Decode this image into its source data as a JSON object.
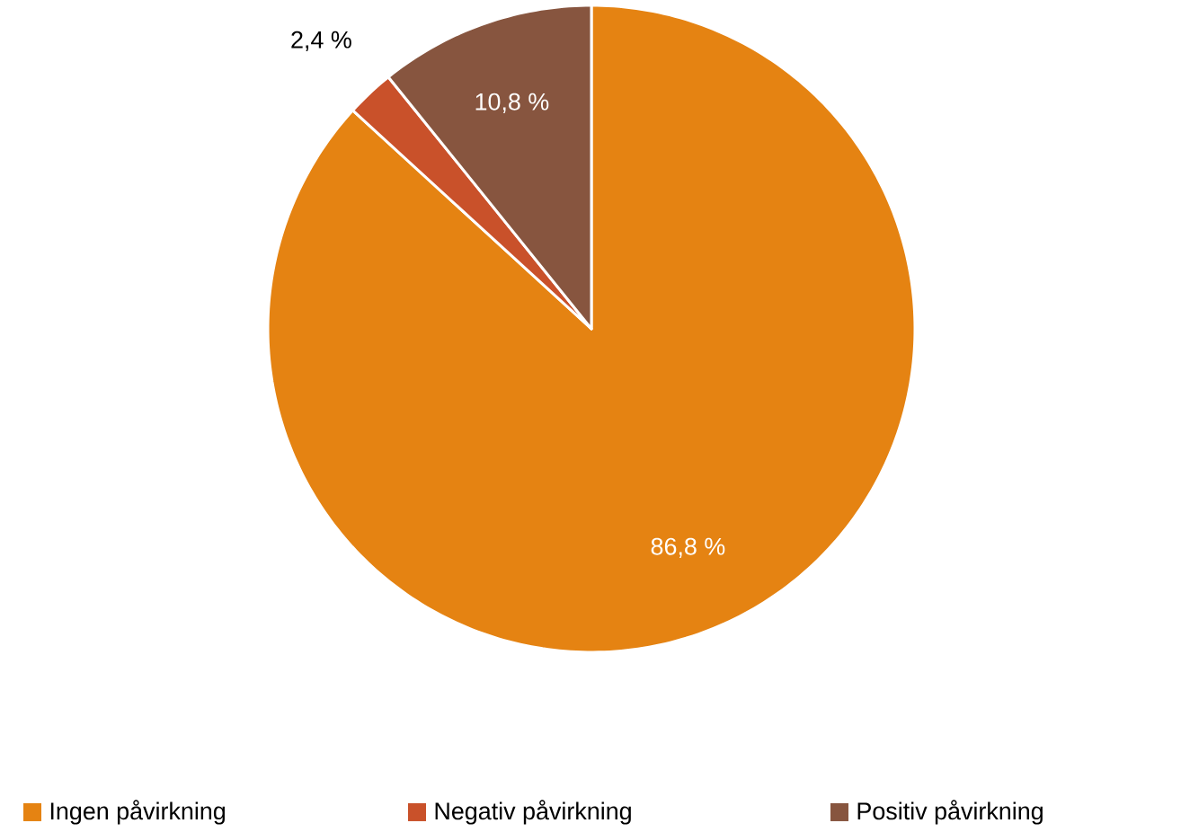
{
  "chart_data": {
    "type": "pie",
    "categories": [
      "Ingen påvirkning",
      "Negativ påvirkning",
      "Positiv påvirkning"
    ],
    "values": [
      86.8,
      2.4,
      10.8
    ],
    "colors": [
      "#e58312",
      "#c9512a",
      "#87553f"
    ],
    "value_labels": [
      "86,8 %",
      "2,4 %",
      "10,8 %"
    ],
    "legend": "bottom"
  }
}
